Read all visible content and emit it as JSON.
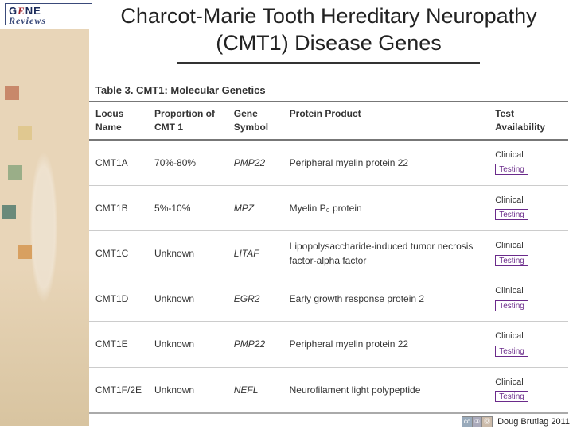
{
  "logo": {
    "gene_prefix": "G",
    "gene_e": "E",
    "gene_suffix": "NE",
    "reviews": "Reviews"
  },
  "title": {
    "line1": "Charcot-Marie Tooth Hereditary Neuropathy",
    "line2": "(CMT1) Disease Genes"
  },
  "table": {
    "caption": "Table 3. CMT1: Molecular Genetics",
    "headers": {
      "locus": "Locus\nName",
      "proportion": "Proportion of\nCMT 1",
      "gene": "Gene\nSymbol",
      "protein": "Protein Product",
      "test": "Test\nAvailability"
    },
    "rows": [
      {
        "locus": "CMT1A",
        "proportion": "70%-80%",
        "gene": "PMP22",
        "protein": "Peripheral myelin protein 22",
        "clinical": "Clinical",
        "testing": "Testing"
      },
      {
        "locus": "CMT1B",
        "proportion": "5%-10%",
        "gene": "MPZ",
        "protein": "Myelin P₀ protein",
        "clinical": "Clinical",
        "testing": "Testing"
      },
      {
        "locus": "CMT1C",
        "proportion": "Unknown",
        "gene": "LITAF",
        "protein": "Lipopolysaccharide-induced tumor necrosis factor-alpha factor",
        "clinical": "Clinical",
        "testing": "Testing"
      },
      {
        "locus": "CMT1D",
        "proportion": "Unknown",
        "gene": "EGR2",
        "protein": "Early growth response protein 2",
        "clinical": "Clinical",
        "testing": "Testing"
      },
      {
        "locus": "CMT1E",
        "proportion": "Unknown",
        "gene": "PMP22",
        "protein": "Peripheral myelin protein 22",
        "clinical": "Clinical",
        "testing": "Testing"
      },
      {
        "locus": "CMT1F/2E",
        "proportion": "Unknown",
        "gene": "NEFL",
        "protein": "Neurofilament light polypeptide",
        "clinical": "Clinical",
        "testing": "Testing"
      }
    ]
  },
  "footer": {
    "attribution": "Doug Brutlag 2011"
  },
  "colors": {
    "sidebar_bg": "#e8d5b8",
    "title_rule": "#333333",
    "header_border": "#777777",
    "row_border": "#cccccc",
    "testing_border": "#6a2a8a",
    "sq_colors": [
      "#c8886a",
      "#e0c890",
      "#9aae88",
      "#6a8a7a",
      "#d8a060"
    ]
  }
}
